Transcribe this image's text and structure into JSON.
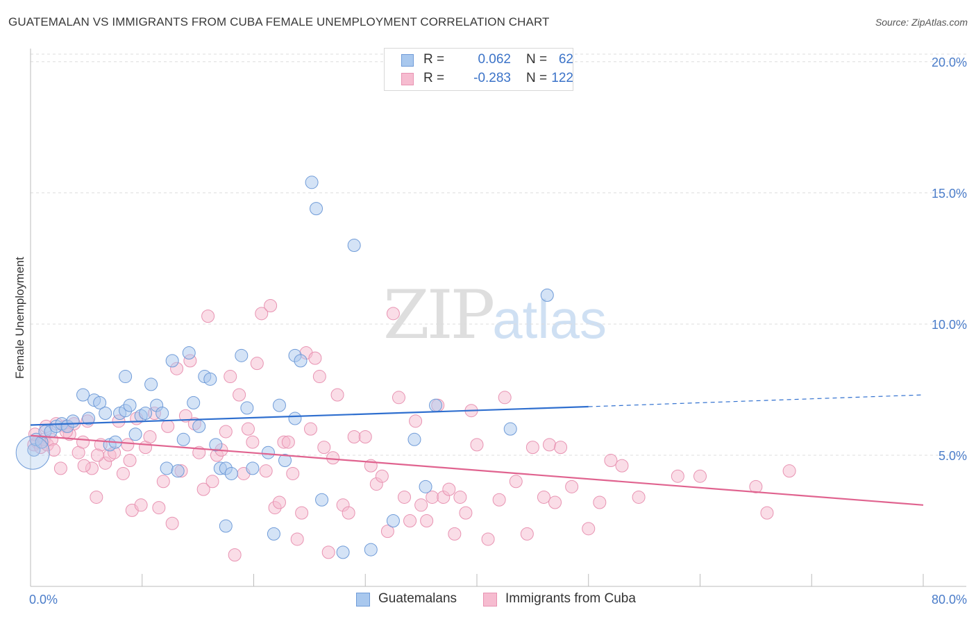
{
  "title": "GUATEMALAN VS IMMIGRANTS FROM CUBA FEMALE UNEMPLOYMENT CORRELATION CHART",
  "source": "Source: ZipAtlas.com",
  "watermark": {
    "zip": "ZIP",
    "atlas": "atlas"
  },
  "colors": {
    "blue_fill": "#a9c8ee",
    "blue_stroke": "#6f9bd8",
    "blue_line": "#2f6fcf",
    "pink_fill": "#f6bcd0",
    "pink_stroke": "#e893b2",
    "pink_line": "#e0638f",
    "grid": "#dcdcdc",
    "tick_text": "#4a7cc9"
  },
  "legend_top": [
    {
      "r_label": "R =",
      "r_value": "0.062",
      "n_label": "N =",
      "n_value": "62"
    },
    {
      "r_label": "R =",
      "r_value": "-0.283",
      "n_label": "N =",
      "n_value": "122"
    }
  ],
  "legend_bottom": [
    "Guatemalans",
    "Immigrants from Cuba"
  ],
  "chart_data": {
    "type": "scatter",
    "title": "GUATEMALAN VS IMMIGRANTS FROM CUBA FEMALE UNEMPLOYMENT CORRELATION CHART",
    "xlabel": "",
    "ylabel": "Female Unemployment",
    "xlim": [
      0,
      80
    ],
    "ylim": [
      0,
      20.5
    ],
    "x_tick_labels": [
      "0.0%",
      "80.0%"
    ],
    "y_ticks": [
      5,
      10,
      15,
      20
    ],
    "y_tick_labels": [
      "5.0%",
      "10.0%",
      "15.0%",
      "20.0%"
    ],
    "grid": true,
    "legend_position": "top-center",
    "series": [
      {
        "name": "Guatemalans",
        "r": 0.062,
        "n": 62,
        "trend": {
          "x0": 0,
          "y0": 6.15,
          "x1": 50,
          "y1": 6.85,
          "dashed_to": 80,
          "y_dashed_end": 7.3
        },
        "points": [
          [
            0.3,
            5.2
          ],
          [
            0.5,
            5.6
          ],
          [
            1.0,
            5.5
          ],
          [
            1.3,
            5.9
          ],
          [
            1.8,
            5.9
          ],
          [
            2.3,
            6.1
          ],
          [
            2.8,
            6.2
          ],
          [
            3.3,
            6.1
          ],
          [
            3.8,
            6.3
          ],
          [
            4.7,
            7.3
          ],
          [
            5.2,
            6.4
          ],
          [
            5.7,
            7.1
          ],
          [
            6.2,
            7.0
          ],
          [
            6.7,
            6.6
          ],
          [
            7.1,
            5.4
          ],
          [
            7.6,
            5.5
          ],
          [
            8.0,
            6.6
          ],
          [
            8.5,
            6.7
          ],
          [
            8.5,
            8.0
          ],
          [
            8.9,
            6.9
          ],
          [
            9.4,
            5.8
          ],
          [
            9.9,
            6.5
          ],
          [
            10.3,
            6.6
          ],
          [
            10.8,
            7.7
          ],
          [
            11.3,
            6.9
          ],
          [
            11.8,
            6.6
          ],
          [
            12.2,
            4.5
          ],
          [
            12.7,
            8.6
          ],
          [
            13.2,
            4.4
          ],
          [
            13.7,
            5.6
          ],
          [
            14.2,
            8.9
          ],
          [
            14.6,
            7.0
          ],
          [
            15.1,
            6.1
          ],
          [
            15.6,
            8.0
          ],
          [
            16.1,
            7.9
          ],
          [
            16.6,
            5.4
          ],
          [
            17.0,
            4.5
          ],
          [
            17.5,
            4.5
          ],
          [
            17.5,
            2.3
          ],
          [
            18.0,
            4.3
          ],
          [
            18.9,
            8.8
          ],
          [
            19.4,
            6.8
          ],
          [
            19.9,
            4.5
          ],
          [
            21.3,
            5.1
          ],
          [
            21.8,
            2.0
          ],
          [
            22.3,
            6.9
          ],
          [
            22.8,
            4.8
          ],
          [
            23.7,
            8.8
          ],
          [
            23.7,
            6.4
          ],
          [
            24.2,
            8.6
          ],
          [
            25.2,
            15.4
          ],
          [
            25.6,
            14.4
          ],
          [
            26.1,
            3.3
          ],
          [
            28.0,
            1.3
          ],
          [
            29.0,
            13.0
          ],
          [
            30.5,
            1.4
          ],
          [
            32.5,
            2.5
          ],
          [
            34.4,
            5.6
          ],
          [
            35.4,
            3.8
          ],
          [
            36.3,
            6.9
          ],
          [
            43.0,
            6.0
          ],
          [
            46.3,
            11.1
          ]
        ]
      },
      {
        "name": "Immigrants from Cuba",
        "r": -0.283,
        "n": 122,
        "trend": {
          "x0": 0,
          "y0": 5.75,
          "x1": 80,
          "y1": 3.1
        },
        "points": [
          [
            0.3,
            5.4
          ],
          [
            0.6,
            5.5
          ],
          [
            0.9,
            5.3
          ],
          [
            1.2,
            5.6
          ],
          [
            1.5,
            5.4
          ],
          [
            1.9,
            5.6
          ],
          [
            2.3,
            6.2
          ],
          [
            2.7,
            4.5
          ],
          [
            3.1,
            6.1
          ],
          [
            3.5,
            5.8
          ],
          [
            3.9,
            6.2
          ],
          [
            4.3,
            5.1
          ],
          [
            4.7,
            5.5
          ],
          [
            5.1,
            6.3
          ],
          [
            5.5,
            4.5
          ],
          [
            5.9,
            3.4
          ],
          [
            6.3,
            5.4
          ],
          [
            6.7,
            4.7
          ],
          [
            7.1,
            5.0
          ],
          [
            7.5,
            5.1
          ],
          [
            7.9,
            6.3
          ],
          [
            8.3,
            4.3
          ],
          [
            8.7,
            5.4
          ],
          [
            9.1,
            2.9
          ],
          [
            9.5,
            6.4
          ],
          [
            9.9,
            3.1
          ],
          [
            10.3,
            5.3
          ],
          [
            10.7,
            5.7
          ],
          [
            11.1,
            6.6
          ],
          [
            11.5,
            3.0
          ],
          [
            11.9,
            4.0
          ],
          [
            12.3,
            6.1
          ],
          [
            12.7,
            2.4
          ],
          [
            13.1,
            8.3
          ],
          [
            13.5,
            4.4
          ],
          [
            13.9,
            6.5
          ],
          [
            14.3,
            8.6
          ],
          [
            14.7,
            6.2
          ],
          [
            15.1,
            5.1
          ],
          [
            15.5,
            3.7
          ],
          [
            15.9,
            10.3
          ],
          [
            16.3,
            4.0
          ],
          [
            16.7,
            5.0
          ],
          [
            17.1,
            5.2
          ],
          [
            17.5,
            5.9
          ],
          [
            17.9,
            8.0
          ],
          [
            18.3,
            1.2
          ],
          [
            18.7,
            7.3
          ],
          [
            19.1,
            4.3
          ],
          [
            19.5,
            6.0
          ],
          [
            19.9,
            5.5
          ],
          [
            20.3,
            8.5
          ],
          [
            20.7,
            10.4
          ],
          [
            21.1,
            4.4
          ],
          [
            21.5,
            10.7
          ],
          [
            21.9,
            3.0
          ],
          [
            22.3,
            3.2
          ],
          [
            22.7,
            5.5
          ],
          [
            23.1,
            5.5
          ],
          [
            23.5,
            4.3
          ],
          [
            23.9,
            1.8
          ],
          [
            24.3,
            2.8
          ],
          [
            24.7,
            8.9
          ],
          [
            25.1,
            6.0
          ],
          [
            25.5,
            8.7
          ],
          [
            25.9,
            8.0
          ],
          [
            26.3,
            5.3
          ],
          [
            26.7,
            1.3
          ],
          [
            27.1,
            4.9
          ],
          [
            27.5,
            7.3
          ],
          [
            28.0,
            3.1
          ],
          [
            28.5,
            2.8
          ],
          [
            29.0,
            5.7
          ],
          [
            30.0,
            5.7
          ],
          [
            30.5,
            4.6
          ],
          [
            31.0,
            3.9
          ],
          [
            31.5,
            4.2
          ],
          [
            32.0,
            2.1
          ],
          [
            32.5,
            10.4
          ],
          [
            33.0,
            7.2
          ],
          [
            33.5,
            3.4
          ],
          [
            34.0,
            2.5
          ],
          [
            34.5,
            6.3
          ],
          [
            35.0,
            3.1
          ],
          [
            35.5,
            2.5
          ],
          [
            36.0,
            3.4
          ],
          [
            36.5,
            6.9
          ],
          [
            37.0,
            3.4
          ],
          [
            37.5,
            3.7
          ],
          [
            38.0,
            2.0
          ],
          [
            38.5,
            3.4
          ],
          [
            39.0,
            2.8
          ],
          [
            39.5,
            6.7
          ],
          [
            40.0,
            5.4
          ],
          [
            41.0,
            1.8
          ],
          [
            42.0,
            3.3
          ],
          [
            42.5,
            7.2
          ],
          [
            43.5,
            4.0
          ],
          [
            44.5,
            2.0
          ],
          [
            45.0,
            5.3
          ],
          [
            46.0,
            3.4
          ],
          [
            46.5,
            5.4
          ],
          [
            47.0,
            3.2
          ],
          [
            47.5,
            5.3
          ],
          [
            48.5,
            3.8
          ],
          [
            50.0,
            2.2
          ],
          [
            51.0,
            3.2
          ],
          [
            52.0,
            4.8
          ],
          [
            53.0,
            4.6
          ],
          [
            54.5,
            3.4
          ],
          [
            58.0,
            4.2
          ],
          [
            60.0,
            4.2
          ],
          [
            65.0,
            3.8
          ],
          [
            66.0,
            2.8
          ],
          [
            68.0,
            4.4
          ],
          [
            0.4,
            5.8
          ],
          [
            1.4,
            6.1
          ],
          [
            2.1,
            5.2
          ],
          [
            3.2,
            5.9
          ],
          [
            4.8,
            4.6
          ],
          [
            6.0,
            5.0
          ],
          [
            8.9,
            4.8
          ]
        ]
      }
    ]
  }
}
